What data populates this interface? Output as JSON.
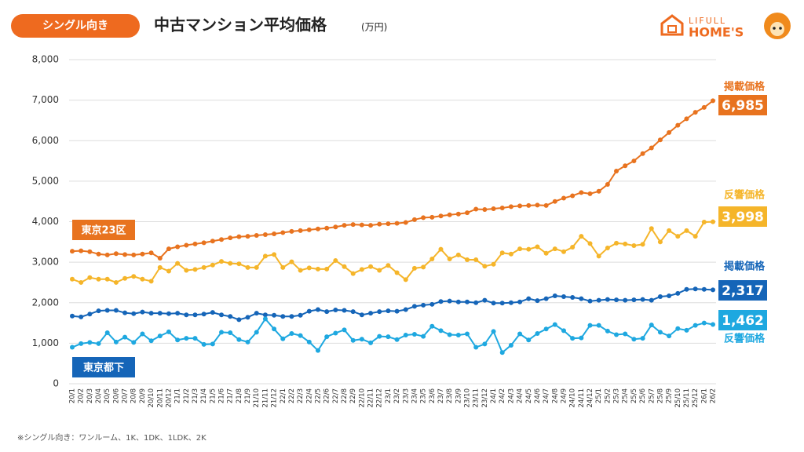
{
  "badge": "シングル向き",
  "logo": {
    "top": "LIFULL",
    "bottom": "HOME'S"
  },
  "footnote": "※シングル向き：ワンルーム、1K、1DK、1LDK、2K",
  "chart_data": {
    "type": "line",
    "title": "中古マンション平均価格",
    "unit": "(万円)",
    "categories": [
      "20/1",
      "20/2",
      "20/3",
      "20/4",
      "20/5",
      "20/6",
      "20/7",
      "20/8",
      "20/9",
      "20/10",
      "20/11",
      "20/12",
      "21/1",
      "21/2",
      "21/3",
      "21/4",
      "21/5",
      "21/6",
      "21/7",
      "21/8",
      "21/9",
      "21/10",
      "21/11",
      "21/12",
      "22/1",
      "22/2",
      "22/3",
      "22/4",
      "22/5",
      "22/6",
      "22/7",
      "22/8",
      "22/9",
      "22/10",
      "22/11",
      "22/12",
      "23/1",
      "23/2",
      "23/3",
      "23/4",
      "23/5",
      "23/6",
      "23/7",
      "23/8",
      "23/9",
      "23/10",
      "23/11",
      "23/12",
      "24/1",
      "24/2",
      "24/3",
      "24/4",
      "24/5",
      "24/6",
      "24/7",
      "24/8",
      "24/9",
      "24/10",
      "24/11",
      "24/12",
      "25/1",
      "25/2",
      "25/3",
      "25/4",
      "25/5",
      "25/6",
      "25/7",
      "25/8",
      "25/9",
      "25/10",
      "25/11",
      "25/12",
      "26/1",
      "26/2"
    ],
    "ylim": [
      0,
      8000
    ],
    "yticks": [
      0,
      {
        "value": 1000,
        "label": "1,000"
      },
      {
        "value": 2000,
        "label": "2,000"
      },
      {
        "value": 3000,
        "label": "3,000"
      },
      {
        "value": 4000,
        "label": "4,000"
      },
      {
        "value": 5000,
        "label": "5,000"
      },
      {
        "value": 6000,
        "label": "6,000"
      },
      {
        "value": 7000,
        "label": "7,000"
      },
      {
        "value": 8000,
        "label": "8,000"
      }
    ],
    "grid": true,
    "annotations": [
      {
        "text": "東京23区",
        "color": "#e8731f"
      },
      {
        "text": "東京都下",
        "color": "#1565b8"
      }
    ],
    "series": [
      {
        "name": "掲載価格",
        "color": "#e8731f",
        "values": [
          3270,
          3280,
          3260,
          3200,
          3180,
          3210,
          3190,
          3180,
          3200,
          3230,
          3100,
          3330,
          3380,
          3420,
          3450,
          3480,
          3520,
          3560,
          3600,
          3630,
          3640,
          3660,
          3680,
          3700,
          3730,
          3760,
          3780,
          3800,
          3820,
          3840,
          3870,
          3910,
          3930,
          3920,
          3910,
          3940,
          3950,
          3960,
          3980,
          4050,
          4100,
          4110,
          4140,
          4170,
          4190,
          4220,
          4310,
          4300,
          4320,
          4340,
          4370,
          4390,
          4400,
          4410,
          4400,
          4500,
          4580,
          4640,
          4720,
          4690,
          4750,
          4920,
          5250,
          5380,
          5500,
          5680,
          5820,
          6020,
          6200,
          6380,
          6540,
          6700,
          6820,
          6985
        ],
        "value_labels": [
          null,
          null,
          null,
          null,
          null,
          null,
          null,
          null,
          null,
          null,
          null,
          null,
          null,
          null,
          null,
          null,
          null,
          null,
          null,
          null,
          null,
          null,
          null,
          null,
          null,
          null,
          null,
          null,
          null,
          null,
          null,
          null,
          null,
          null,
          null,
          null,
          null,
          null,
          null,
          null,
          null,
          null,
          null,
          null,
          null,
          null,
          null,
          null,
          null,
          null,
          null,
          null,
          null,
          null,
          null,
          null,
          null,
          null,
          null,
          null,
          null,
          null,
          null,
          null,
          null,
          null,
          null,
          null,
          null,
          null,
          null,
          null,
          null,
          "6,985"
        ]
      },
      {
        "name": "反響価格",
        "color": "#f5b52a",
        "values": [
          2580,
          2500,
          2620,
          2580,
          2580,
          2500,
          2600,
          2650,
          2580,
          2530,
          2870,
          2780,
          2970,
          2800,
          2820,
          2870,
          2930,
          3020,
          2970,
          2960,
          2870,
          2870,
          3150,
          3190,
          2870,
          3010,
          2800,
          2860,
          2830,
          2830,
          3040,
          2890,
          2720,
          2820,
          2890,
          2800,
          2920,
          2740,
          2570,
          2850,
          2880,
          3080,
          3320,
          3080,
          3180,
          3060,
          3060,
          2900,
          2950,
          3230,
          3200,
          3330,
          3320,
          3380,
          3220,
          3330,
          3260,
          3370,
          3640,
          3460,
          3150,
          3350,
          3470,
          3450,
          3410,
          3440,
          3830,
          3500,
          3780,
          3640,
          3780,
          3640,
          3990,
          3998
        ],
        "value_labels": [
          null,
          null,
          null,
          null,
          null,
          null,
          null,
          null,
          null,
          null,
          null,
          null,
          null,
          null,
          null,
          null,
          null,
          null,
          null,
          null,
          null,
          null,
          null,
          null,
          null,
          null,
          null,
          null,
          null,
          null,
          null,
          null,
          null,
          null,
          null,
          null,
          null,
          null,
          null,
          null,
          null,
          null,
          null,
          null,
          null,
          null,
          null,
          null,
          null,
          null,
          null,
          null,
          null,
          null,
          null,
          null,
          null,
          null,
          null,
          null,
          null,
          null,
          null,
          null,
          null,
          null,
          null,
          null,
          null,
          null,
          null,
          null,
          null,
          "3,998"
        ]
      },
      {
        "name": "掲載価格",
        "color": "#1565b8",
        "values": [
          1670,
          1650,
          1720,
          1800,
          1810,
          1810,
          1750,
          1730,
          1770,
          1740,
          1740,
          1730,
          1740,
          1700,
          1700,
          1720,
          1760,
          1700,
          1660,
          1580,
          1640,
          1740,
          1700,
          1690,
          1660,
          1660,
          1690,
          1790,
          1830,
          1780,
          1820,
          1810,
          1780,
          1700,
          1740,
          1780,
          1800,
          1790,
          1830,
          1910,
          1940,
          1960,
          2030,
          2040,
          2020,
          2020,
          2000,
          2060,
          1990,
          1990,
          2000,
          2020,
          2100,
          2050,
          2100,
          2170,
          2150,
          2130,
          2100,
          2040,
          2060,
          2080,
          2070,
          2060,
          2070,
          2080,
          2060,
          2150,
          2170,
          2230,
          2330,
          2340,
          2330,
          2317
        ],
        "value_labels": [
          null,
          null,
          null,
          null,
          null,
          null,
          null,
          null,
          null,
          null,
          null,
          null,
          null,
          null,
          null,
          null,
          null,
          null,
          null,
          null,
          null,
          null,
          null,
          null,
          null,
          null,
          null,
          null,
          null,
          null,
          null,
          null,
          null,
          null,
          null,
          null,
          null,
          null,
          null,
          null,
          null,
          null,
          null,
          null,
          null,
          null,
          null,
          null,
          null,
          null,
          null,
          null,
          null,
          null,
          null,
          null,
          null,
          null,
          null,
          null,
          null,
          null,
          null,
          null,
          null,
          null,
          null,
          null,
          null,
          null,
          null,
          null,
          null,
          "2,317"
        ]
      },
      {
        "name": "反響価格",
        "color": "#1ea8e0",
        "values": [
          900,
          990,
          1020,
          990,
          1260,
          1030,
          1150,
          1020,
          1230,
          1060,
          1180,
          1280,
          1080,
          1120,
          1120,
          970,
          980,
          1270,
          1260,
          1090,
          1030,
          1270,
          1600,
          1350,
          1110,
          1240,
          1190,
          1030,
          820,
          1160,
          1250,
          1330,
          1070,
          1100,
          1010,
          1170,
          1160,
          1090,
          1200,
          1220,
          1170,
          1420,
          1310,
          1210,
          1200,
          1230,
          900,
          980,
          1290,
          770,
          950,
          1230,
          1080,
          1240,
          1350,
          1460,
          1310,
          1120,
          1130,
          1440,
          1440,
          1300,
          1210,
          1230,
          1100,
          1120,
          1450,
          1270,
          1180,
          1360,
          1320,
          1440,
          1500,
          1462
        ],
        "value_labels": [
          null,
          null,
          null,
          null,
          null,
          null,
          null,
          null,
          null,
          null,
          null,
          null,
          null,
          null,
          null,
          null,
          null,
          null,
          null,
          null,
          null,
          null,
          null,
          null,
          null,
          null,
          null,
          null,
          null,
          null,
          null,
          null,
          null,
          null,
          null,
          null,
          null,
          null,
          null,
          null,
          null,
          null,
          null,
          null,
          null,
          null,
          null,
          null,
          null,
          null,
          null,
          null,
          null,
          null,
          null,
          null,
          null,
          null,
          null,
          null,
          null,
          null,
          null,
          null,
          null,
          null,
          null,
          null,
          null,
          null,
          null,
          null,
          null,
          "1,462"
        ]
      }
    ]
  }
}
